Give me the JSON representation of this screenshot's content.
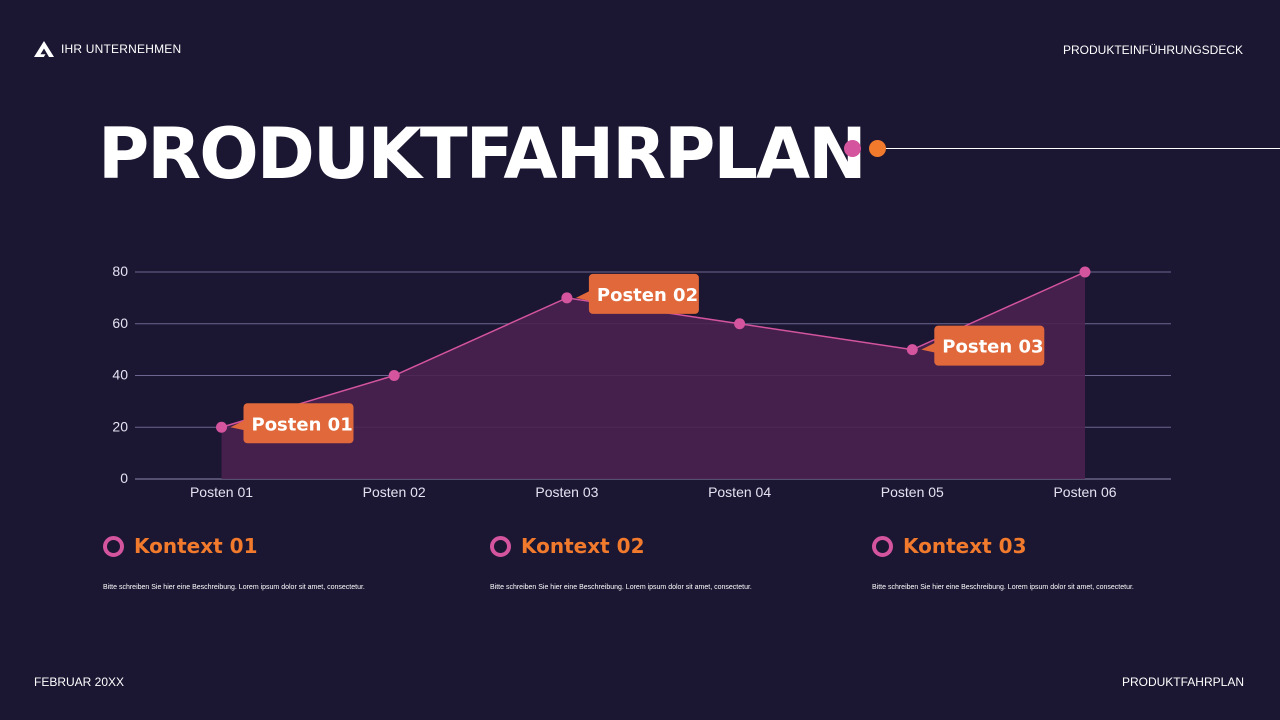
{
  "header": {
    "brand_icon": "brand-logo-icon",
    "brand": "IHR UNTERNEHMEN",
    "deck_label": "PRODUKTEINFÜHRUNGSDECK"
  },
  "title": "PRODUKTFAHRPLAN",
  "colors": {
    "background": "#1b1632",
    "accent_pink": "#d4549e",
    "accent_orange": "#f27a2c",
    "callout": "#e0683a",
    "area_fill": "#4a2150"
  },
  "chart_data": {
    "type": "area",
    "categories": [
      "Posten 01",
      "Posten 02",
      "Posten 03",
      "Posten 04",
      "Posten 05",
      "Posten 06"
    ],
    "series": [
      {
        "values": [
          20,
          40,
          70,
          60,
          50,
          80
        ]
      }
    ],
    "yticks": [
      0,
      20,
      40,
      60,
      80
    ],
    "ylim": [
      0,
      80
    ],
    "grid": true,
    "annotations": [
      {
        "label": "Posten 01",
        "category_index": 0
      },
      {
        "label": "Posten 02",
        "category_index": 2
      },
      {
        "label": "Posten 03",
        "category_index": 4
      }
    ]
  },
  "contexts": [
    {
      "title": "Kontext 01",
      "description": "Bitte schreiben Sie hier eine Beschreibung. Lorem ipsum dolor sit amet, consectetur."
    },
    {
      "title": "Kontext 02",
      "description": "Bitte schreiben Sie hier eine Beschreibung. Lorem ipsum dolor sit amet, consectetur."
    },
    {
      "title": "Kontext 03",
      "description": "Bitte schreiben Sie hier eine Beschreibung. Lorem ipsum dolor sit amet, consectetur."
    }
  ],
  "footer": {
    "date": "FEBRUAR 20XX",
    "label": "PRODUKTFAHRPLAN"
  }
}
